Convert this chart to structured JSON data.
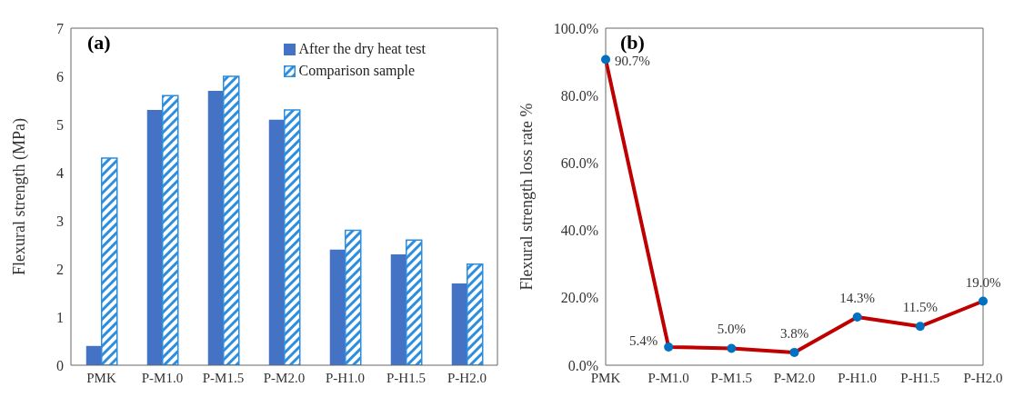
{
  "chart_data": [
    {
      "type": "bar",
      "title": "(a)",
      "ylabel": "Flexural strength (MPa)",
      "categories": [
        "PMK",
        "P-M1.0",
        "P-M1.5",
        "P-M2.0",
        "P-H1.0",
        "P-H1.5",
        "P-H2.0"
      ],
      "series": [
        {
          "name": "After the dry heat test",
          "color": "#4472c4",
          "values": [
            0.4,
            5.3,
            5.7,
            5.1,
            2.4,
            2.3,
            1.7
          ]
        },
        {
          "name": "Comparison sample",
          "color": "#2e8ede",
          "values": [
            4.3,
            5.6,
            6.0,
            5.3,
            2.8,
            2.6,
            2.1
          ]
        }
      ],
      "ylim": [
        0,
        7
      ],
      "yticks": [
        0,
        1,
        2,
        3,
        4,
        5,
        6,
        7
      ],
      "grid": false,
      "legend": "top right"
    },
    {
      "type": "line",
      "title": "(b)",
      "ylabel": "Flexural strength loss rate %",
      "categories": [
        "PMK",
        "P-M1.0",
        "P-M1.5",
        "P-M2.0",
        "P-H1.0",
        "P-H1.5",
        "P-H2.0"
      ],
      "series": [
        {
          "color": "#c00000",
          "values": [
            90.7,
            5.4,
            5.0,
            3.8,
            14.3,
            11.5,
            19.0
          ],
          "value_labels": [
            "90.7%",
            "5.4%",
            "5.0%",
            "3.8%",
            "14.3%",
            "11.5%",
            "19.0%"
          ]
        }
      ],
      "ylim": [
        0,
        100
      ],
      "yticks": [
        {
          "value": 0,
          "label": "0.0%"
        },
        {
          "value": 20,
          "label": "20.0%"
        },
        {
          "value": 40,
          "label": "40.0%"
        },
        {
          "value": 60,
          "label": "60.0%"
        },
        {
          "value": 80,
          "label": "80.0%"
        },
        {
          "value": 100,
          "label": "100.0%"
        }
      ],
      "grid": false,
      "legend": false,
      "marker": "circle"
    }
  ]
}
